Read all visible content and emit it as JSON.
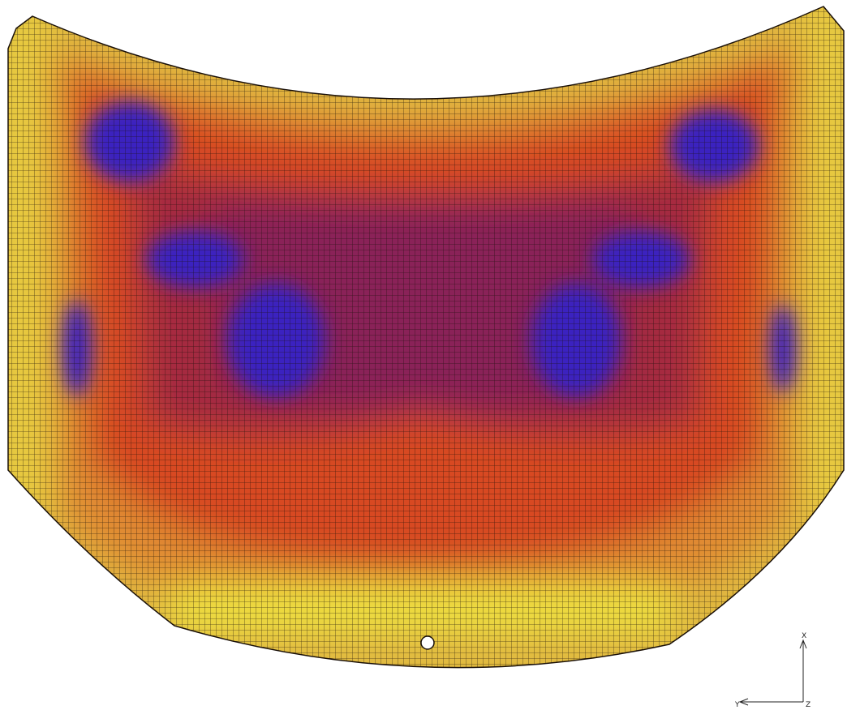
{
  "axis_triad": {
    "vertical_label": "X",
    "horizontal_label": "Y",
    "origin_label": "Z"
  }
}
